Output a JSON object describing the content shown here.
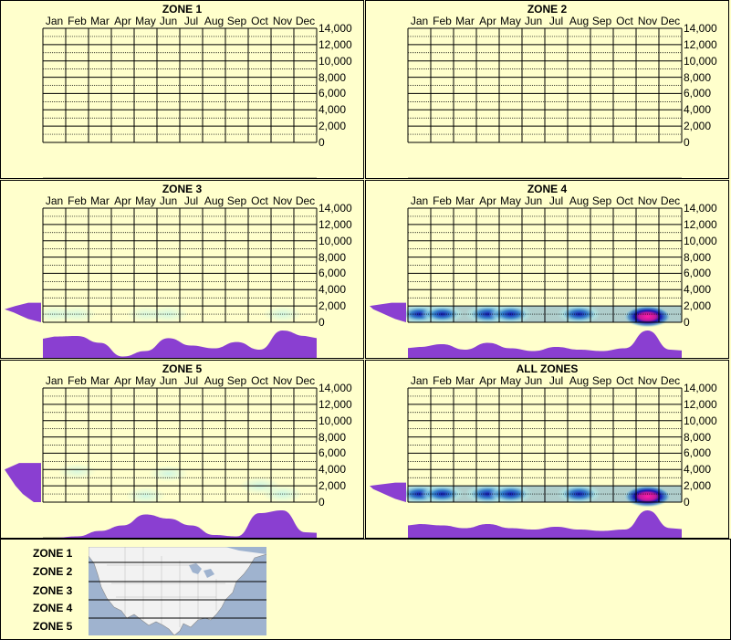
{
  "months": [
    "Jan",
    "Feb",
    "Mar",
    "Apr",
    "May",
    "Jun",
    "Jul",
    "Aug",
    "Sep",
    "Oct",
    "Nov",
    "Dec"
  ],
  "y_ticks": [
    "14,000",
    "12,000",
    "10,000",
    "8,000",
    "6,000",
    "4,000",
    "2,000",
    "0"
  ],
  "panels": [
    {
      "title": "ZONE 1"
    },
    {
      "title": "ZONE 2"
    },
    {
      "title": "ZONE 3"
    },
    {
      "title": "ZONE 4"
    },
    {
      "title": "ZONE 5"
    },
    {
      "title": "ALL ZONES"
    }
  ],
  "legend": {
    "zones": [
      "ZONE 1",
      "ZONE 2",
      "ZONE 3",
      "ZONE 4",
      "ZONE 5"
    ]
  },
  "colors": {
    "background": "#ffffcc",
    "histogram": "#8a3fd1",
    "density_low": "#aef0f0",
    "density_mid": "#1a6fc9",
    "density_high": "#0000b0",
    "density_peak": "#ff1ca8",
    "map_water": "#9fb3cf",
    "map_land": "#f2f2f2"
  },
  "chart_data": [
    {
      "type": "heatmap",
      "title": "ZONE 1",
      "x": [
        "Jan",
        "Feb",
        "Mar",
        "Apr",
        "May",
        "Jun",
        "Jul",
        "Aug",
        "Sep",
        "Oct",
        "Nov",
        "Dec"
      ],
      "ylim": [
        0,
        14000
      ],
      "month_profile": [
        0,
        0,
        0,
        0,
        0,
        0,
        0,
        0,
        0,
        0,
        0,
        0
      ],
      "elevation_profile": []
    },
    {
      "type": "heatmap",
      "title": "ZONE 2",
      "x": [
        "Jan",
        "Feb",
        "Mar",
        "Apr",
        "May",
        "Jun",
        "Jul",
        "Aug",
        "Sep",
        "Oct",
        "Nov",
        "Dec"
      ],
      "ylim": [
        0,
        14000
      ],
      "month_profile": [
        0,
        0,
        0,
        0,
        0,
        0,
        0,
        0,
        0,
        0,
        0,
        0
      ],
      "elevation_profile": []
    },
    {
      "type": "heatmap",
      "title": "ZONE 3",
      "x": [
        "Jan",
        "Feb",
        "Mar",
        "Apr",
        "May",
        "Jun",
        "Jul",
        "Aug",
        "Sep",
        "Oct",
        "Nov",
        "Dec"
      ],
      "ylim": [
        0,
        14000
      ],
      "month_profile": [
        0.78,
        0.8,
        0.55,
        0.05,
        0.25,
        0.72,
        0.45,
        0.35,
        0.58,
        0.3,
        1.0,
        0.8
      ],
      "elevation_profile": [
        [
          0,
          0.0
        ],
        [
          400,
          0.35
        ],
        [
          800,
          0.55
        ],
        [
          1200,
          0.75
        ],
        [
          1600,
          1.0
        ],
        [
          2000,
          0.7
        ],
        [
          2400,
          0.35
        ]
      ],
      "density_peaks": [
        [
          0.5,
          1000,
          0.3
        ],
        [
          1.5,
          1000,
          0.25
        ],
        [
          4.5,
          1000,
          0.2
        ],
        [
          5.5,
          1000,
          0.3
        ],
        [
          10.5,
          1000,
          0.3
        ]
      ]
    },
    {
      "type": "heatmap",
      "title": "ZONE 4",
      "x": [
        "Jan",
        "Feb",
        "Mar",
        "Apr",
        "May",
        "Jun",
        "Jul",
        "Aug",
        "Sep",
        "Oct",
        "Nov",
        "Dec"
      ],
      "ylim": [
        0,
        14000
      ],
      "month_profile": [
        0.4,
        0.5,
        0.3,
        0.55,
        0.35,
        0.25,
        0.4,
        0.3,
        0.25,
        0.35,
        1.0,
        0.3
      ],
      "elevation_profile": [
        [
          0,
          0.0
        ],
        [
          400,
          0.3
        ],
        [
          800,
          0.5
        ],
        [
          1200,
          0.7
        ],
        [
          1600,
          0.9
        ],
        [
          2000,
          1.0
        ],
        [
          2400,
          0.4
        ]
      ],
      "density_peaks": [
        [
          0.5,
          1000,
          0.6
        ],
        [
          1.5,
          1000,
          0.6
        ],
        [
          3.5,
          1000,
          0.8
        ],
        [
          4.5,
          1000,
          0.7
        ],
        [
          7.5,
          1000,
          0.7
        ],
        [
          10.5,
          700,
          1.0
        ]
      ]
    },
    {
      "type": "heatmap",
      "title": "ZONE 5",
      "x": [
        "Jan",
        "Feb",
        "Mar",
        "Apr",
        "May",
        "Jun",
        "Jul",
        "Aug",
        "Sep",
        "Oct",
        "Nov",
        "Dec"
      ],
      "ylim": [
        0,
        14000
      ],
      "month_profile": [
        0.0,
        0.05,
        0.25,
        0.45,
        0.85,
        0.7,
        0.45,
        0.1,
        0.05,
        0.9,
        1.0,
        0.2
      ],
      "elevation_profile": [
        [
          0,
          0.2
        ],
        [
          1000,
          0.5
        ],
        [
          2000,
          0.7
        ],
        [
          3000,
          0.85
        ],
        [
          4000,
          1.0
        ],
        [
          4800,
          0.6
        ]
      ],
      "density_peaks": [
        [
          1.5,
          3800,
          0.2
        ],
        [
          4.5,
          800,
          0.35
        ],
        [
          5.5,
          3500,
          0.3
        ],
        [
          9.5,
          2000,
          0.35
        ],
        [
          10.5,
          1000,
          0.4
        ]
      ]
    },
    {
      "type": "heatmap",
      "title": "ALL ZONES",
      "x": [
        "Jan",
        "Feb",
        "Mar",
        "Apr",
        "May",
        "Jun",
        "Jul",
        "Aug",
        "Sep",
        "Oct",
        "Nov",
        "Dec"
      ],
      "ylim": [
        0,
        14000
      ],
      "month_profile": [
        0.5,
        0.45,
        0.35,
        0.5,
        0.35,
        0.3,
        0.4,
        0.3,
        0.25,
        0.3,
        1.0,
        0.35
      ],
      "elevation_profile": [
        [
          0,
          0.0
        ],
        [
          400,
          0.3
        ],
        [
          800,
          0.5
        ],
        [
          1200,
          0.7
        ],
        [
          1600,
          0.9
        ],
        [
          2000,
          1.0
        ],
        [
          2400,
          0.3
        ]
      ],
      "density_peaks": [
        [
          0.5,
          1000,
          0.7
        ],
        [
          1.5,
          1000,
          0.65
        ],
        [
          3.5,
          1000,
          0.85
        ],
        [
          4.5,
          1000,
          0.75
        ],
        [
          7.5,
          1000,
          0.75
        ],
        [
          10.5,
          700,
          1.0
        ]
      ]
    }
  ]
}
